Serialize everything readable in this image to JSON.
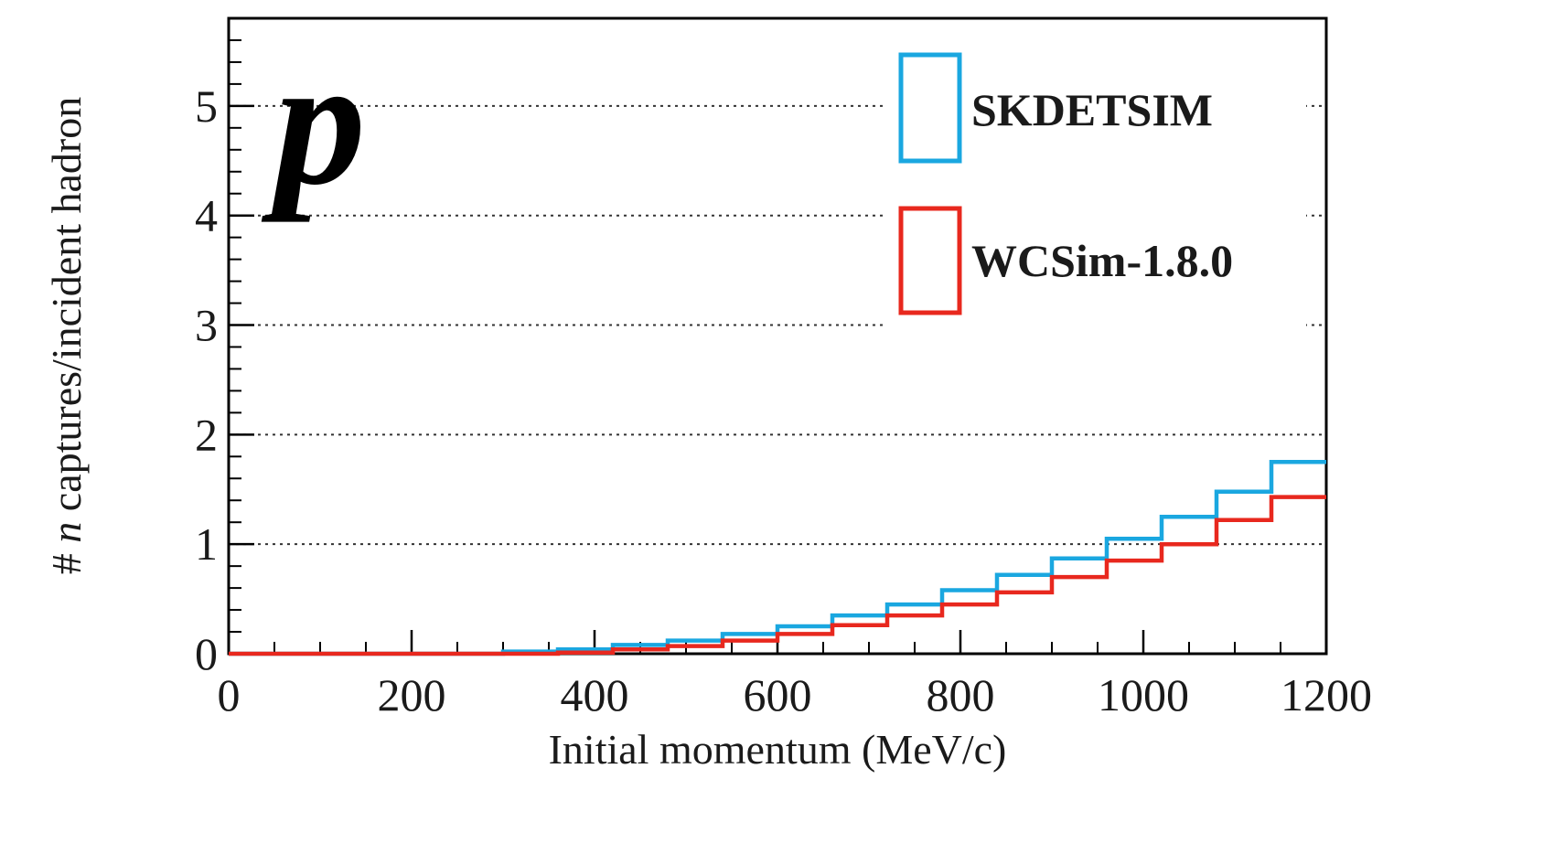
{
  "chart_data": {
    "type": "line",
    "panel_label": "p",
    "xlabel": "Initial momentum (MeV/c)",
    "ylabel_prefix": "# ",
    "ylabel_italic": "n",
    "ylabel_suffix": " captures/incident hadron",
    "xlim": [
      0,
      1200
    ],
    "ylim": [
      0,
      5.8
    ],
    "xticks": [
      0,
      200,
      400,
      600,
      800,
      1000,
      1200
    ],
    "yticks": [
      0,
      1,
      2,
      3,
      4,
      5
    ],
    "xtick_labels": [
      "0",
      "200",
      "400",
      "600",
      "800",
      "1000",
      "1200"
    ],
    "ytick_labels": [
      "0",
      "1",
      "2",
      "3",
      "4",
      "5"
    ],
    "grid": "horizontal-dotted",
    "legend_position": "top-right",
    "bin_edges": [
      0,
      60,
      120,
      180,
      240,
      300,
      360,
      420,
      480,
      540,
      600,
      660,
      720,
      780,
      840,
      900,
      960,
      1020,
      1080,
      1140,
      1200
    ],
    "series": [
      {
        "name": "SKDETSIM",
        "color": "#1aa7e0",
        "values": [
          0,
          0,
          0,
          0,
          0,
          0.02,
          0.04,
          0.08,
          0.12,
          0.18,
          0.25,
          0.35,
          0.45,
          0.58,
          0.72,
          0.87,
          1.05,
          1.25,
          1.48,
          1.75
        ]
      },
      {
        "name": "WCSim-1.8.0",
        "color": "#e8281e",
        "values": [
          0,
          0,
          0,
          0,
          0,
          0,
          0.01,
          0.04,
          0.07,
          0.12,
          0.18,
          0.26,
          0.35,
          0.45,
          0.56,
          0.7,
          0.85,
          1.0,
          1.22,
          1.43
        ]
      }
    ]
  }
}
